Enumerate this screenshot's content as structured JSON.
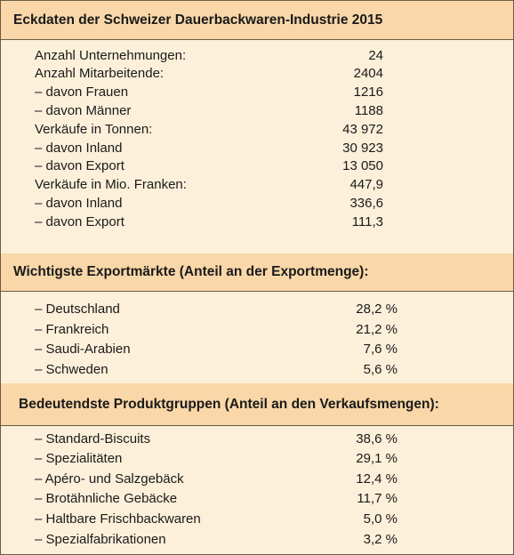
{
  "sections": [
    {
      "title": "Eckdaten der Schweizer Dauerbackwaren-Industrie 2015",
      "rows": [
        [
          "Anzahl Unternehmungen:",
          "24"
        ],
        [
          "Anzahl Mitarbeitende:",
          "2404"
        ],
        [
          "– davon Frauen",
          "1216"
        ],
        [
          "– davon Männer",
          "1188"
        ],
        [
          "Verkäufe in Tonnen:",
          "43 972"
        ],
        [
          "– davon Inland",
          "30 923"
        ],
        [
          "– davon Export",
          "13 050"
        ],
        [
          "Verkäufe in Mio. Franken:",
          "447,9"
        ],
        [
          "– davon Inland",
          "336,6"
        ],
        [
          "– davon Export",
          "111,3"
        ]
      ]
    },
    {
      "title": "Wichtigste Exportmärkte (Anteil an der Exportmenge):",
      "rows": [
        [
          "– Deutschland",
          "28,2 %"
        ],
        [
          "– Frankreich",
          "21,2 %"
        ],
        [
          "– Saudi-Arabien",
          "7,6 %"
        ],
        [
          "– Schweden",
          "5,6 %"
        ]
      ]
    },
    {
      "title": "Bedeutendste Produktgruppen (Anteil an den Verkaufsmengen):",
      "rows": [
        [
          "– Standard-Biscuits",
          "38,6 %"
        ],
        [
          "– Spezialitäten",
          "29,1 %"
        ],
        [
          "– Apéro- und Salzgebäck",
          "12,4 %"
        ],
        [
          "– Brotähnliche Gebäcke",
          "11,7 %"
        ],
        [
          "– Haltbare Frischbackwaren",
          "5,0 %"
        ],
        [
          "– Spezialfabrikationen",
          "3,2 %"
        ]
      ]
    }
  ]
}
